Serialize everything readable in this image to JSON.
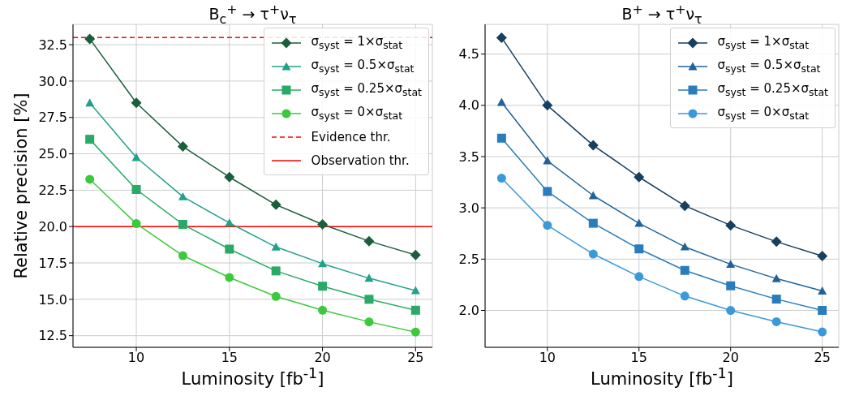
{
  "chart_data": [
    {
      "type": "line",
      "title": "B$_{c}$$^{+}$ → τ$^{+}$ν$_{τ}$",
      "xlabel": "Luminosity [fb$^{-1}$]",
      "ylabel": "Relative precision [%]",
      "x": [
        7.5,
        10,
        12.5,
        15,
        17.5,
        20,
        22.5,
        25
      ],
      "series": [
        {
          "name": "σ$_{syst}$ = 1×σ$_{stat}$",
          "color": "#1b5e3b",
          "marker": "diamond",
          "values": [
            32.9,
            28.5,
            25.5,
            23.4,
            21.5,
            20.15,
            19.0,
            18.05
          ]
        },
        {
          "name": "σ$_{syst}$ = 0.5×σ$_{stat}$",
          "color": "#23a08a",
          "marker": "triangle",
          "values": [
            28.5,
            24.75,
            22.05,
            20.25,
            18.6,
            17.45,
            16.45,
            15.6
          ]
        },
        {
          "name": "σ$_{syst}$ = 0.25×σ$_{stat}$",
          "color": "#2aaa66",
          "marker": "square",
          "values": [
            26.0,
            22.55,
            20.15,
            18.45,
            16.95,
            15.9,
            15.0,
            14.25
          ]
        },
        {
          "name": "σ$_{syst}$ = 0×σ$_{stat}$",
          "color": "#3cc93c",
          "marker": "circle",
          "values": [
            23.25,
            20.2,
            18.0,
            16.5,
            15.2,
            14.25,
            13.45,
            12.75
          ]
        }
      ],
      "ref_lines": [
        {
          "axis": "y",
          "value": 33.0,
          "label": "Evidence thr.",
          "color": "#ff0000",
          "line_style": "dashed"
        },
        {
          "axis": "y",
          "value": 20.0,
          "label": "Observation thr.",
          "color": "#ff0000",
          "line_style": "solid"
        }
      ],
      "xlim": [
        6.6,
        25.9
      ],
      "ylim": [
        11.7,
        33.9
      ],
      "xticks": [
        10,
        15,
        20,
        25
      ],
      "yticks": [
        12.5,
        {
          "value": 15,
          "label": "15.0"
        },
        17.5,
        {
          "value": 20,
          "label": "20.0"
        },
        22.5,
        {
          "value": 25,
          "label": "25.0"
        },
        27.5,
        {
          "value": 30,
          "label": "30.0"
        },
        32.5
      ],
      "grid": true,
      "legend": "top right"
    },
    {
      "type": "line",
      "title": "B$^{+}$ → τ$^{+}$ν$_{τ}$",
      "xlabel": "Luminosity [fb$^{-1}$]",
      "x": [
        7.5,
        10,
        12.5,
        15,
        17.5,
        20,
        22.5,
        25
      ],
      "series": [
        {
          "name": "σ$_{syst}$ = 1×σ$_{stat}$",
          "color": "#173f5f",
          "marker": "diamond",
          "values": [
            4.66,
            4.0,
            3.61,
            3.3,
            3.02,
            2.83,
            2.67,
            2.53
          ]
        },
        {
          "name": "σ$_{syst}$ = 0.5×σ$_{stat}$",
          "color": "#20639b",
          "marker": "triangle",
          "values": [
            4.03,
            3.46,
            3.12,
            2.85,
            2.62,
            2.45,
            2.31,
            2.19
          ]
        },
        {
          "name": "σ$_{syst}$ = 0.25×σ$_{stat}$",
          "color": "#2a7dbb",
          "marker": "square",
          "values": [
            3.68,
            3.16,
            2.85,
            2.6,
            2.39,
            2.24,
            2.11,
            2.0
          ]
        },
        {
          "name": "σ$_{syst}$ = 0×σ$_{stat}$",
          "color": "#3a9ad9",
          "marker": "circle",
          "values": [
            3.29,
            2.83,
            2.55,
            2.33,
            2.14,
            2.0,
            1.89,
            1.79
          ]
        }
      ],
      "xlim": [
        6.6,
        25.9
      ],
      "ylim": [
        1.64,
        4.79
      ],
      "xticks": [
        10,
        15,
        20,
        25
      ],
      "yticks": [
        {
          "value": 2,
          "label": "2.0"
        },
        2.5,
        {
          "value": 3,
          "label": "3.0"
        },
        3.5,
        {
          "value": 4,
          "label": "4.0"
        },
        4.5
      ],
      "grid": true,
      "legend": "top right"
    }
  ]
}
